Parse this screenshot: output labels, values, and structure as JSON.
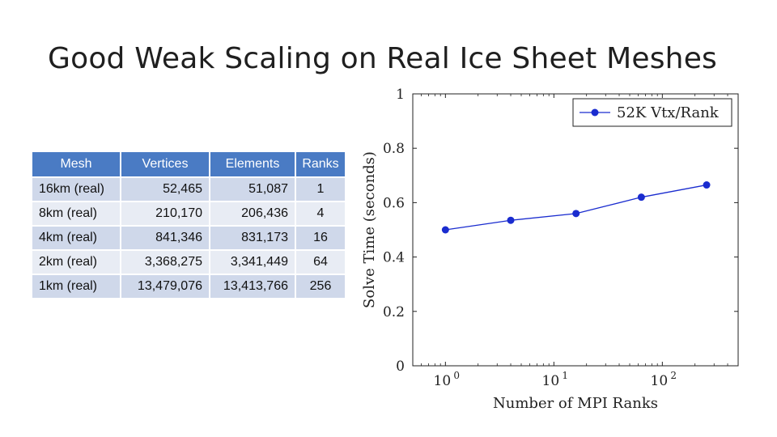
{
  "slide": {
    "title": "Good Weak Scaling on Real Ice Sheet Meshes"
  },
  "table": {
    "headers": [
      "Mesh",
      "Vertices",
      "Elements",
      "Ranks"
    ],
    "rows": [
      [
        "16km (real)",
        "52,465",
        "51,087",
        "1"
      ],
      [
        "8km (real)",
        "210,170",
        "206,436",
        "4"
      ],
      [
        "4km (real)",
        "841,346",
        "831,173",
        "16"
      ],
      [
        "2km (real)",
        "3,368,275",
        "3,341,449",
        "64"
      ],
      [
        "1km (real)",
        "13,479,076",
        "13,413,766",
        "256"
      ]
    ]
  },
  "chart_data": {
    "type": "line",
    "title": "",
    "xlabel": "Number of MPI Ranks",
    "ylabel": "Solve Time (seconds)",
    "xscale": "log",
    "xlim": [
      0.5,
      500
    ],
    "ylim": [
      0,
      1
    ],
    "x_ticks": [
      1,
      10,
      100
    ],
    "x_tick_labels": [
      "10",
      "10",
      "10"
    ],
    "x_tick_exponents": [
      "0",
      "1",
      "2"
    ],
    "y_ticks": [
      0,
      0.2,
      0.4,
      0.6,
      0.8,
      1
    ],
    "y_tick_labels": [
      "0",
      "0.2",
      "0.4",
      "0.6",
      "0.8",
      "1"
    ],
    "legend_position": "top-right",
    "series": [
      {
        "name": "52K Vtx/Rank",
        "color": "#1a2ccf",
        "x": [
          1,
          4,
          16,
          64,
          256
        ],
        "values": [
          0.5,
          0.535,
          0.56,
          0.62,
          0.665
        ]
      }
    ]
  }
}
